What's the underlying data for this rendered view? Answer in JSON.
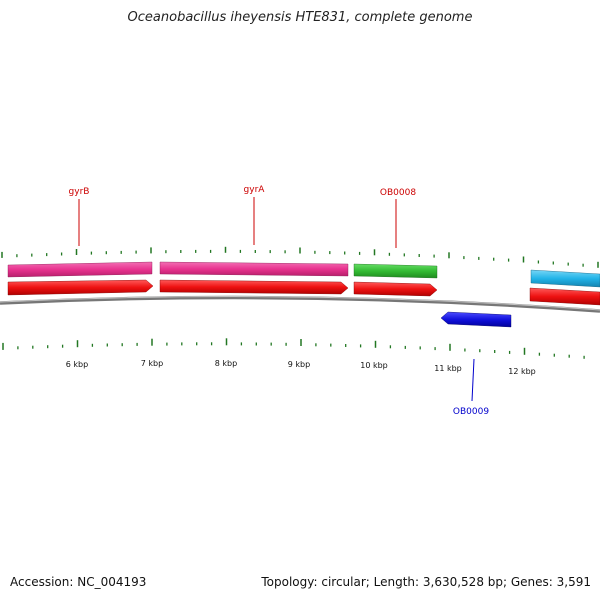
{
  "figure": {
    "title": "Oceanobacillus iheyensis HTE831, complete genome",
    "accession": "Accession: NC_004193",
    "summary": "Topology: circular; Length: 3,630,528 bp; Genes: 3,591"
  },
  "scale": {
    "ticks": [
      "6 kbp",
      "7 kbp",
      "8 kbp",
      "9 kbp",
      "10 kbp",
      "11 kbp",
      "12 kbp"
    ]
  },
  "genes": [
    {
      "name": "gyrB",
      "color": "#cc0000"
    },
    {
      "name": "gyrA",
      "color": "#cc0000"
    },
    {
      "name": "OB0008",
      "color": "#cc0000"
    },
    {
      "name": "OB0009",
      "color": "#0000cc"
    }
  ],
  "colors": {
    "cog_magenta": "#e8338f",
    "cog_green": "#33bb33",
    "cog_cyan": "#22b4e8",
    "forward_red": "#ee1111",
    "reverse_blue": "#1111dd",
    "backbone": "#777777",
    "tick_green": "#227722"
  }
}
